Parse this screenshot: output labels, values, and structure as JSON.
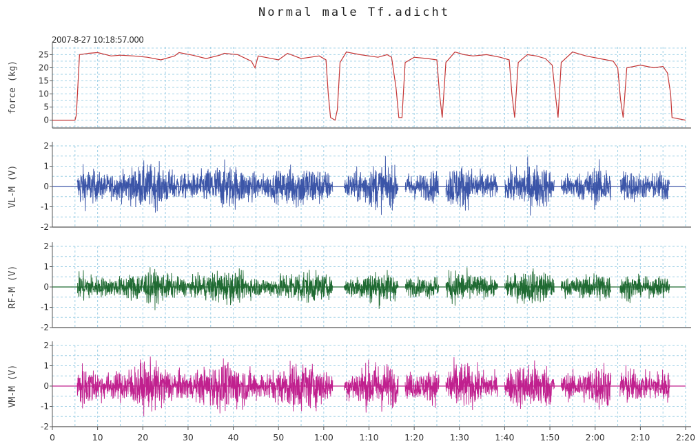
{
  "title": "Normal male Tf.adicht",
  "timestamp": "2007-8-27 10:18:57.000",
  "colors": {
    "force": "#c43434",
    "vl": "#3b55a8",
    "rf": "#1f6a32",
    "vm": "#c0208e",
    "grid": "#9fd0e6",
    "axis": "#555555"
  },
  "chart_data": [
    {
      "type": "line",
      "ylabel": "force (kg)",
      "ylim": [
        -3,
        28
      ],
      "yticks": [
        0,
        5,
        10,
        15,
        20,
        25
      ],
      "xlim": [
        0,
        140
      ],
      "grid": true,
      "series": [
        {
          "x": [
            0,
            5,
            5.3,
            6,
            8,
            10,
            13,
            15,
            18,
            21,
            24,
            27,
            28,
            31,
            34,
            37,
            38,
            41,
            44,
            44.8,
            45.5,
            47,
            50,
            52,
            55,
            57,
            59,
            60.5,
            61,
            61.5,
            62.5,
            63,
            63.6,
            65,
            68,
            70,
            72,
            74,
            75,
            76,
            76.6,
            77.3,
            78,
            80,
            83,
            85,
            85.6,
            86.2,
            87,
            89,
            91,
            93,
            96,
            99,
            101,
            101.6,
            102.2,
            103,
            105,
            107,
            109,
            110.5,
            111.2,
            111.8,
            112.5,
            115,
            118,
            121,
            124,
            125,
            125.6,
            126.2,
            127,
            130,
            133,
            135,
            136,
            136.7,
            137,
            140
          ],
          "y": [
            0,
            0,
            2,
            25,
            25.5,
            25.8,
            24.5,
            24.8,
            24.5,
            24,
            23,
            24.5,
            25.8,
            24.8,
            23.5,
            24.8,
            25.5,
            25,
            22.5,
            20,
            24.5,
            24,
            23,
            25.5,
            23.5,
            24,
            24.5,
            23,
            10,
            1,
            0,
            4,
            22,
            26,
            25,
            24.5,
            24,
            25,
            24,
            12,
            1,
            1,
            22,
            24,
            23.5,
            23,
            10,
            1,
            22,
            26,
            25,
            24.5,
            25,
            24,
            23,
            10,
            1,
            22,
            25,
            24.5,
            23.5,
            21,
            10,
            1,
            22,
            26,
            24.5,
            23.5,
            22.5,
            20,
            8,
            1,
            20,
            21,
            20,
            20.5,
            18,
            10,
            1,
            0
          ]
        }
      ]
    },
    {
      "type": "line",
      "ylabel": "VL-M (V)",
      "ylim": [
        -2,
        2
      ],
      "yticks": [
        -2,
        -1,
        0,
        1,
        2
      ],
      "xlim": [
        0,
        140
      ],
      "bursts": [
        [
          5.5,
          62.0
        ],
        [
          64.5,
          76.5
        ],
        [
          78.0,
          85.5
        ],
        [
          87.0,
          98.5
        ],
        [
          100.0,
          111.0
        ],
        [
          112.5,
          123.5
        ],
        [
          125.5,
          136.5
        ]
      ],
      "amplitude": 1.15
    },
    {
      "type": "line",
      "ylabel": "RF-M (V)",
      "ylim": [
        -2,
        2
      ],
      "yticks": [
        -2,
        -1,
        0,
        1,
        2
      ],
      "xlim": [
        0,
        140
      ],
      "bursts": [
        [
          5.5,
          62.0
        ],
        [
          64.5,
          76.5
        ],
        [
          78.0,
          85.5
        ],
        [
          87.0,
          98.5
        ],
        [
          100.0,
          111.0
        ],
        [
          112.5,
          123.5
        ],
        [
          125.5,
          136.5
        ]
      ],
      "amplitude": 0.85
    },
    {
      "type": "line",
      "ylabel": "VM-M (V)",
      "ylim": [
        -2,
        2
      ],
      "yticks": [
        -2,
        -1,
        0,
        1,
        2
      ],
      "xlim": [
        0,
        140
      ],
      "xticks": [
        0,
        10,
        20,
        30,
        40,
        50,
        60,
        70,
        80,
        90,
        100,
        110,
        120,
        130,
        140
      ],
      "xticklabels": [
        "0",
        "10",
        "20",
        "30",
        "40",
        "50",
        "1:00",
        "1:10",
        "1:20",
        "1:30",
        "1:40",
        "1:50",
        "2:00",
        "2:10",
        "2:20"
      ],
      "bursts": [
        [
          5.5,
          62.0
        ],
        [
          64.5,
          76.5
        ],
        [
          78.0,
          85.5
        ],
        [
          87.0,
          98.5
        ],
        [
          100.0,
          111.0
        ],
        [
          112.5,
          123.5
        ],
        [
          125.5,
          136.5
        ]
      ],
      "amplitude": 1.25
    }
  ]
}
